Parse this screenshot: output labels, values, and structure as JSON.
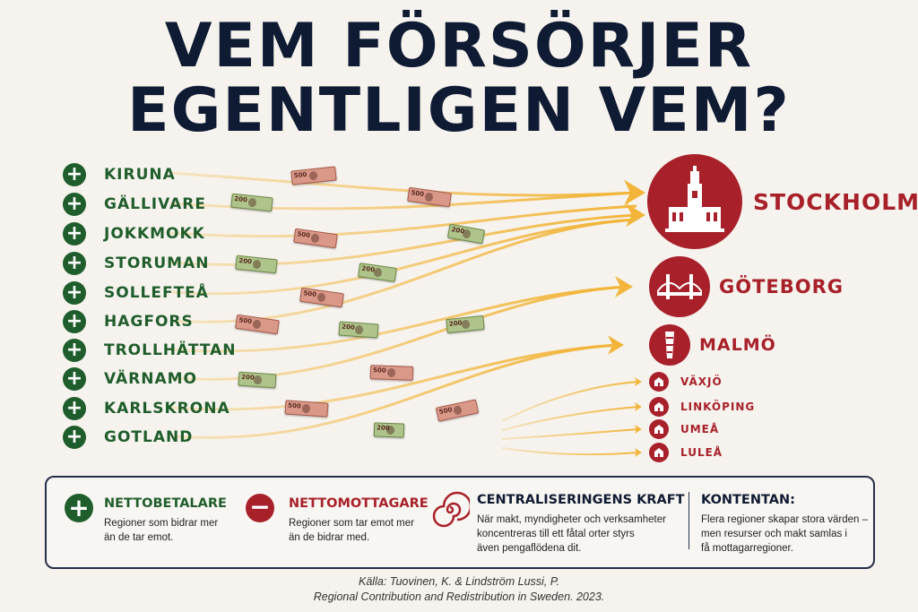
{
  "title_line1": "VEM FÖRSÖRJER",
  "title_line2": "EGENTLIGEN VEM?",
  "regions": [
    "KIRUNA",
    "GÄLLIVARE",
    "JOKKMOKK",
    "STORUMAN",
    "SOLLEFTEÅ",
    "HAGFORS",
    "TROLLHÄTTAN",
    "VÄRNAMO",
    "KARLSKRONA",
    "GOTLAND"
  ],
  "region_icon": "plus-icon",
  "destinations": {
    "major": [
      "STOCKHOLM",
      "GÖTEBORG",
      "MALMÖ"
    ],
    "minor": [
      "VÄXJÖ",
      "LINKÖPING",
      "UMEÅ",
      "LULEÅ"
    ]
  },
  "banknotes": {
    "high": "500",
    "low": "200"
  },
  "colors": {
    "green": "#1f5e2c",
    "red": "#a8202a",
    "navy": "#0f1b33",
    "flow": "#f2b53a"
  },
  "legend": {
    "nettobetalare": {
      "title": "NETTOBETALARE",
      "text": [
        "Regioner som bidrar mer",
        "än de tar emot."
      ]
    },
    "nettomottagare": {
      "title": "NETTOMOTTAGARE",
      "text": [
        "Regioner som tar emot mer",
        "än de bidrar med."
      ]
    },
    "central": {
      "title": "CENTRALISERINGENS KRAFT",
      "text": [
        "När makt, myndigheter och verksamheter",
        "koncentreras till ett fåtal orter styrs",
        "även pengaflödena dit."
      ]
    },
    "kontentan": {
      "title": "KONTENTAN:",
      "text": [
        "Flera regioner skapar stora värden –",
        "men resurser och makt samlas i",
        "få mottagarregioner."
      ]
    }
  },
  "source_line1": "Källa: Tuovinen, K. & Lindström Lussi, P.",
  "source_line2": "Regional Contribution and Redistribution in Sweden. 2023."
}
